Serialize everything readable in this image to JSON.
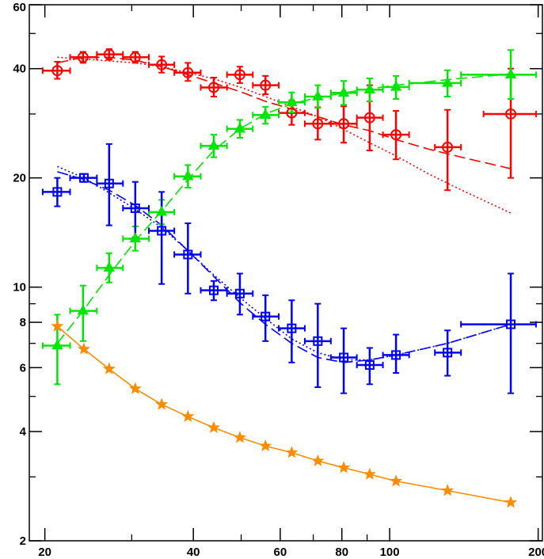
{
  "chart_data": {
    "type": "scatter",
    "title": "",
    "xlabel": "",
    "ylabel": "",
    "x_scale": "log",
    "y_scale": "log",
    "xlim": [
      18.6,
      204
    ],
    "ylim": [
      2,
      60
    ],
    "x_ticks": [
      {
        "value": 20,
        "label": "20"
      },
      {
        "value": 40,
        "label": "40"
      },
      {
        "value": 60,
        "label": "60"
      },
      {
        "value": 80,
        "label": "80"
      },
      {
        "value": 100,
        "label": "100"
      },
      {
        "value": 200,
        "label": "200"
      }
    ],
    "y_ticks": [
      {
        "value": 2,
        "label": "2"
      },
      {
        "value": 4,
        "label": "4"
      },
      {
        "value": 6,
        "label": "6"
      },
      {
        "value": 8,
        "label": "8"
      },
      {
        "value": 10,
        "label": "10"
      },
      {
        "value": 20,
        "label": "20"
      },
      {
        "value": 40,
        "label": "40"
      },
      {
        "value": 60,
        "label": "60"
      }
    ],
    "grid": false,
    "series": [
      {
        "color": "#ff0000",
        "marker": "circle",
        "points": [
          {
            "x": 21.2,
            "y": 39.5,
            "xlo": 19.8,
            "xhi": 22.5,
            "ylo": 37.5,
            "yhi": 41.8
          },
          {
            "x": 23.9,
            "y": 43.0,
            "xlo": 22.5,
            "xhi": 25.5,
            "ylo": 41.5,
            "yhi": 44.5
          },
          {
            "x": 27.0,
            "y": 43.8,
            "xlo": 25.5,
            "xhi": 28.8,
            "ylo": 42.3,
            "yhi": 45.3
          },
          {
            "x": 30.5,
            "y": 43.0,
            "xlo": 28.8,
            "xhi": 32.5,
            "ylo": 41.5,
            "yhi": 44.5
          },
          {
            "x": 34.5,
            "y": 41.0,
            "xlo": 32.5,
            "xhi": 36.6,
            "ylo": 39.0,
            "yhi": 43.2
          },
          {
            "x": 39.0,
            "y": 39.0,
            "xlo": 36.6,
            "xhi": 41.4,
            "ylo": 37.0,
            "yhi": 41.5
          },
          {
            "x": 44.0,
            "y": 35.5,
            "xlo": 41.4,
            "xhi": 46.8,
            "ylo": 33.5,
            "yhi": 37.8
          },
          {
            "x": 49.7,
            "y": 38.5,
            "xlo": 46.8,
            "xhi": 52.8,
            "ylo": 36.5,
            "yhi": 40.5
          },
          {
            "x": 56.0,
            "y": 36.0,
            "xlo": 52.8,
            "xhi": 59.6,
            "ylo": 34.0,
            "yhi": 38.2
          },
          {
            "x": 63.3,
            "y": 30.2,
            "xlo": 59.6,
            "xhi": 67.3,
            "ylo": 28.0,
            "yhi": 32.7
          },
          {
            "x": 71.5,
            "y": 28.2,
            "xlo": 67.3,
            "xhi": 76.0,
            "ylo": 25.5,
            "yhi": 31.3
          },
          {
            "x": 80.7,
            "y": 28.2,
            "xlo": 76.0,
            "xhi": 85.8,
            "ylo": 25.0,
            "yhi": 31.5
          },
          {
            "x": 91.1,
            "y": 29.3,
            "xlo": 85.8,
            "xhi": 96.9,
            "ylo": 23.8,
            "yhi": 36.0
          },
          {
            "x": 103.0,
            "y": 26.3,
            "xlo": 96.9,
            "xhi": 109.5,
            "ylo": 22.5,
            "yhi": 30.6
          },
          {
            "x": 131.0,
            "y": 24.3,
            "xlo": 123.5,
            "xhi": 139.5,
            "ylo": 18.5,
            "yhi": 30.8
          },
          {
            "x": 176.0,
            "y": 30.0,
            "xlo": 155.0,
            "xhi": 198.0,
            "ylo": 20.0,
            "yhi": 40.0
          }
        ],
        "lines": [
          {
            "style": "dashed",
            "points": [
              [
                21.2,
                41.5
              ],
              [
                24,
                43.0
              ],
              [
                27,
                43.0
              ],
              [
                30.5,
                42.2
              ],
              [
                34.5,
                40.5
              ],
              [
                39,
                38.5
              ],
              [
                44,
                36.5
              ],
              [
                50,
                34.5
              ],
              [
                56,
                32.5
              ],
              [
                63,
                31.0
              ],
              [
                71.5,
                29.5
              ],
              [
                80.7,
                28.0
              ],
              [
                91,
                27.0
              ],
              [
                103,
                25.5
              ],
              [
                120,
                24.0
              ],
              [
                140,
                22.8
              ],
              [
                176,
                21.2
              ]
            ]
          },
          {
            "style": "dotted",
            "points": [
              [
                21.2,
                43.0
              ],
              [
                24,
                42.5
              ],
              [
                27,
                42.0
              ],
              [
                30.5,
                41.5
              ],
              [
                34.5,
                40.5
              ],
              [
                39,
                39.0
              ],
              [
                44,
                37.5
              ],
              [
                50,
                35.5
              ],
              [
                56,
                33.5
              ],
              [
                63,
                31.5
              ],
              [
                71.5,
                29.5
              ],
              [
                80.7,
                27.2
              ],
              [
                91,
                25.0
              ],
              [
                103,
                23.0
              ],
              [
                120,
                20.5
              ],
              [
                140,
                18.5
              ],
              [
                176,
                16.0
              ]
            ]
          }
        ]
      },
      {
        "color": "#00e600",
        "marker": "triangle",
        "points": [
          {
            "x": 21.2,
            "y": 6.9,
            "xlo": 19.8,
            "xhi": 22.5,
            "ylo": 5.4,
            "yhi": 8.4
          },
          {
            "x": 23.9,
            "y": 8.6,
            "xlo": 22.5,
            "xhi": 25.5,
            "ylo": 7.1,
            "yhi": 10.1
          },
          {
            "x": 27.0,
            "y": 11.3,
            "xlo": 25.5,
            "xhi": 28.8,
            "ylo": 10.3,
            "yhi": 12.4
          },
          {
            "x": 30.5,
            "y": 13.6,
            "xlo": 28.8,
            "xhi": 32.5,
            "ylo": 12.6,
            "yhi": 14.7
          },
          {
            "x": 34.5,
            "y": 16.1,
            "xlo": 32.5,
            "xhi": 36.6,
            "ylo": 14.9,
            "yhi": 17.4
          },
          {
            "x": 39.0,
            "y": 20.2,
            "xlo": 36.6,
            "xhi": 41.4,
            "ylo": 18.8,
            "yhi": 21.7
          },
          {
            "x": 44.0,
            "y": 24.5,
            "xlo": 41.4,
            "xhi": 46.8,
            "ylo": 22.8,
            "yhi": 26.3
          },
          {
            "x": 49.7,
            "y": 27.3,
            "xlo": 46.8,
            "xhi": 52.8,
            "ylo": 25.8,
            "yhi": 28.9
          },
          {
            "x": 56.0,
            "y": 29.8,
            "xlo": 52.8,
            "xhi": 59.6,
            "ylo": 28.2,
            "yhi": 31.4
          },
          {
            "x": 63.3,
            "y": 32.3,
            "xlo": 59.6,
            "xhi": 67.3,
            "ylo": 30.3,
            "yhi": 34.4
          },
          {
            "x": 71.5,
            "y": 33.5,
            "xlo": 67.3,
            "xhi": 76.0,
            "ylo": 31.2,
            "yhi": 36.0
          },
          {
            "x": 80.7,
            "y": 34.3,
            "xlo": 76.0,
            "xhi": 85.8,
            "ylo": 31.8,
            "yhi": 37.0
          },
          {
            "x": 91.1,
            "y": 35.0,
            "xlo": 85.8,
            "xhi": 96.9,
            "ylo": 32.5,
            "yhi": 37.6
          },
          {
            "x": 103.0,
            "y": 35.6,
            "xlo": 96.9,
            "xhi": 109.5,
            "ylo": 33.0,
            "yhi": 38.2
          },
          {
            "x": 131.0,
            "y": 36.5,
            "xlo": 109.5,
            "xhi": 139.5,
            "ylo": 33.5,
            "yhi": 39.6
          },
          {
            "x": 176.0,
            "y": 38.5,
            "xlo": 139.5,
            "xhi": 198.0,
            "ylo": 33.0,
            "yhi": 45.0
          }
        ],
        "lines": [
          {
            "style": "dashed",
            "points": [
              [
                21.2,
                7.0
              ],
              [
                23.9,
                8.6
              ],
              [
                27,
                10.8
              ],
              [
                30.5,
                13.4
              ],
              [
                34.5,
                16.2
              ],
              [
                39,
                19.8
              ],
              [
                44,
                23.8
              ],
              [
                49.7,
                27.3
              ],
              [
                56,
                30.0
              ],
              [
                63.3,
                32.0
              ],
              [
                71.5,
                33.3
              ],
              [
                80.7,
                34.3
              ],
              [
                91.1,
                35.2
              ],
              [
                103,
                36.0
              ],
              [
                131,
                37.3
              ],
              [
                176,
                38.7
              ]
            ]
          }
        ]
      },
      {
        "color": "#0000ff",
        "marker": "square",
        "points": [
          {
            "x": 21.2,
            "y": 18.3,
            "xlo": 19.8,
            "xhi": 22.5,
            "ylo": 16.7,
            "yhi": 20.0
          },
          {
            "x": 24.0,
            "y": 20.0,
            "xlo": 22.5,
            "xhi": 25.5,
            "ylo": 19.5,
            "yhi": 20.5
          },
          {
            "x": 27.0,
            "y": 19.3,
            "xlo": 25.5,
            "xhi": 28.8,
            "ylo": 14.8,
            "yhi": 24.8
          },
          {
            "x": 30.5,
            "y": 16.5,
            "xlo": 28.8,
            "xhi": 32.5,
            "ylo": 13.7,
            "yhi": 19.5
          },
          {
            "x": 34.5,
            "y": 14.3,
            "xlo": 32.5,
            "xhi": 36.6,
            "ylo": 10.2,
            "yhi": 18.3
          },
          {
            "x": 39.0,
            "y": 12.3,
            "xlo": 36.6,
            "xhi": 41.4,
            "ylo": 9.6,
            "yhi": 15.0
          },
          {
            "x": 44.0,
            "y": 9.8,
            "xlo": 41.4,
            "xhi": 46.8,
            "ylo": 9.2,
            "yhi": 10.4
          },
          {
            "x": 49.7,
            "y": 9.6,
            "xlo": 46.8,
            "xhi": 52.8,
            "ylo": 8.4,
            "yhi": 10.9
          },
          {
            "x": 56.0,
            "y": 8.3,
            "xlo": 52.8,
            "xhi": 59.6,
            "ylo": 7.1,
            "yhi": 9.5
          },
          {
            "x": 63.3,
            "y": 7.7,
            "xlo": 59.6,
            "xhi": 67.3,
            "ylo": 6.2,
            "yhi": 9.2
          },
          {
            "x": 71.5,
            "y": 7.1,
            "xlo": 67.3,
            "xhi": 76.0,
            "ylo": 5.3,
            "yhi": 9.0
          },
          {
            "x": 80.7,
            "y": 6.4,
            "xlo": 76.0,
            "xhi": 85.8,
            "ylo": 5.1,
            "yhi": 7.7
          },
          {
            "x": 91.1,
            "y": 6.1,
            "xlo": 85.8,
            "xhi": 96.9,
            "ylo": 5.4,
            "yhi": 6.8
          },
          {
            "x": 103.0,
            "y": 6.5,
            "xlo": 96.9,
            "xhi": 109.5,
            "ylo": 5.8,
            "yhi": 7.4
          },
          {
            "x": 131.0,
            "y": 6.6,
            "xlo": 123.5,
            "xhi": 139.5,
            "ylo": 5.7,
            "yhi": 7.6
          },
          {
            "x": 176.0,
            "y": 7.9,
            "xlo": 139.5,
            "xhi": 198.0,
            "ylo": 5.1,
            "yhi": 10.9
          }
        ],
        "lines": [
          {
            "style": "dashed",
            "points": [
              [
                21.2,
                20.8
              ],
              [
                24,
                19.8
              ],
              [
                27,
                18.5
              ],
              [
                30.5,
                16.8
              ],
              [
                34.5,
                14.8
              ],
              [
                39,
                12.6
              ],
              [
                44,
                10.7
              ],
              [
                50,
                9.0
              ],
              [
                56,
                7.9
              ],
              [
                63.3,
                7.0
              ],
              [
                71.5,
                6.4
              ],
              [
                80.7,
                6.2
              ],
              [
                91.1,
                6.3
              ],
              [
                103,
                6.5
              ],
              [
                131,
                7.0
              ],
              [
                176,
                7.9
              ]
            ]
          },
          {
            "style": "dotted",
            "points": [
              [
                21.2,
                21.5
              ],
              [
                24,
                20.0
              ],
              [
                27,
                18.2
              ],
              [
                30.5,
                16.4
              ],
              [
                34.5,
                14.6
              ],
              [
                39,
                12.6
              ],
              [
                44,
                10.8
              ],
              [
                50,
                9.3
              ],
              [
                56,
                8.2
              ],
              [
                63.3,
                7.2
              ],
              [
                71.5,
                6.6
              ],
              [
                80.7,
                6.3
              ],
              [
                91.1,
                6.3
              ],
              [
                103,
                6.5
              ],
              [
                131,
                7.0
              ],
              [
                176,
                7.9
              ]
            ]
          }
        ]
      },
      {
        "color": "#ff8c00",
        "marker": "star",
        "points": [
          {
            "x": 21.2,
            "y": 7.8
          },
          {
            "x": 24.0,
            "y": 6.75
          },
          {
            "x": 27.0,
            "y": 5.95
          },
          {
            "x": 30.5,
            "y": 5.25
          },
          {
            "x": 34.5,
            "y": 4.75
          },
          {
            "x": 39.0,
            "y": 4.4
          },
          {
            "x": 44.0,
            "y": 4.1
          },
          {
            "x": 49.7,
            "y": 3.85
          },
          {
            "x": 56.0,
            "y": 3.65
          },
          {
            "x": 63.3,
            "y": 3.5
          },
          {
            "x": 71.5,
            "y": 3.32
          },
          {
            "x": 80.7,
            "y": 3.18
          },
          {
            "x": 91.1,
            "y": 3.05
          },
          {
            "x": 103.0,
            "y": 2.92
          },
          {
            "x": 131.0,
            "y": 2.75
          },
          {
            "x": 176.0,
            "y": 2.55
          }
        ],
        "lines": [
          {
            "style": "solid",
            "points": [
              [
                21.2,
                7.8
              ],
              [
                24,
                6.75
              ],
              [
                27,
                5.95
              ],
              [
                30.5,
                5.25
              ],
              [
                34.5,
                4.75
              ],
              [
                39,
                4.4
              ],
              [
                44,
                4.1
              ],
              [
                49.7,
                3.85
              ],
              [
                56,
                3.65
              ],
              [
                63.3,
                3.5
              ],
              [
                71.5,
                3.32
              ],
              [
                80.7,
                3.18
              ],
              [
                91.1,
                3.05
              ],
              [
                103,
                2.92
              ],
              [
                131,
                2.75
              ],
              [
                176,
                2.55
              ]
            ]
          }
        ]
      }
    ]
  }
}
